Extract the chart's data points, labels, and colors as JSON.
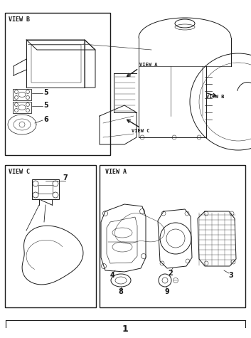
{
  "bg_color": "#ffffff",
  "line_color": "#1a1a1a",
  "figure_width": 3.53,
  "figure_height": 4.75,
  "dpi": 100,
  "page_number": "1",
  "labels": {
    "VIEW_B": "VIEW B",
    "VIEW_C": "VIEW C",
    "VIEW_A": "VIEW A"
  },
  "part_numbers": [
    "5",
    "5",
    "6",
    "7",
    "2",
    "3",
    "4",
    "8",
    "9"
  ]
}
